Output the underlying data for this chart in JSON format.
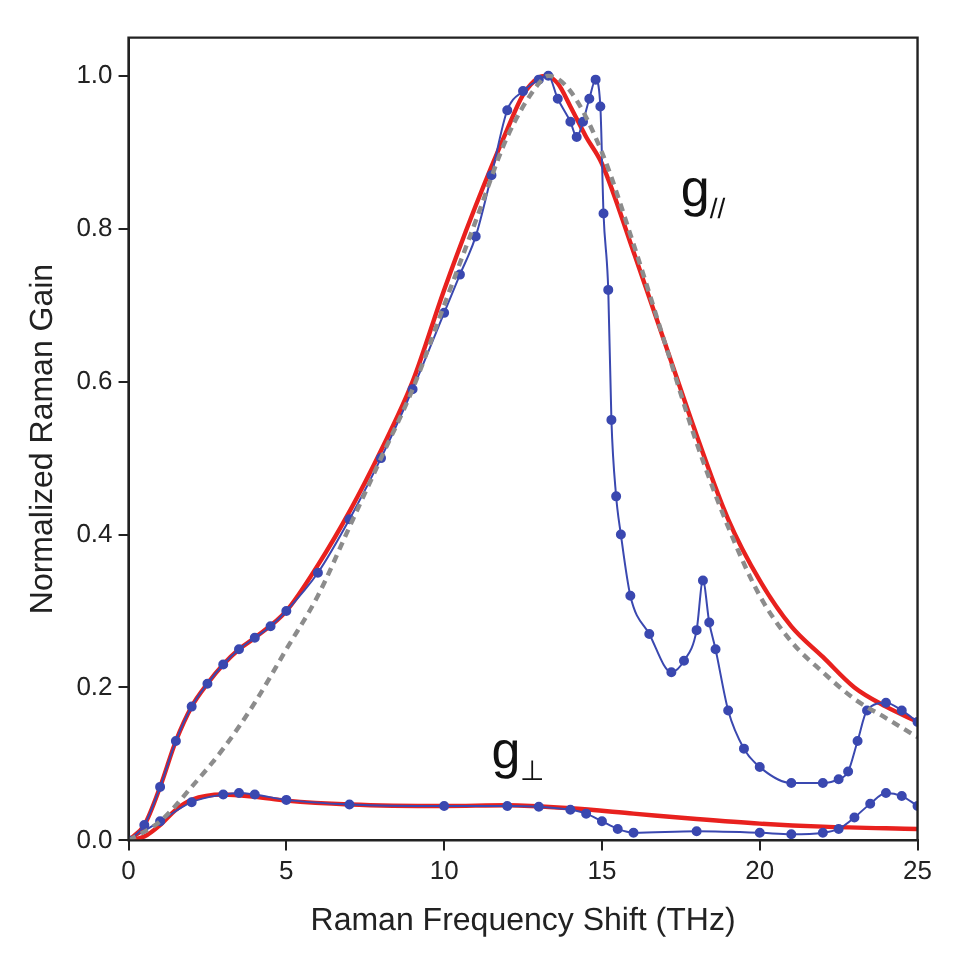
{
  "chart_data": {
    "type": "line",
    "xlabel": "Raman Frequency Shift (THz)",
    "ylabel": "Normalized Raman Gain",
    "xlim": [
      0,
      25
    ],
    "ylim": [
      0,
      1.05
    ],
    "xticks": [
      0,
      5,
      10,
      15,
      20,
      25
    ],
    "yticks": [
      {
        "value": 0,
        "label": "0.0"
      },
      0.2,
      0.4,
      0.6,
      0.8,
      {
        "value": 1,
        "label": "1.0"
      }
    ],
    "grid": false,
    "legend": false,
    "series": [
      {
        "color": "#8c8c8c",
        "line_style": "dashed",
        "marker": "none",
        "x": [
          0,
          1,
          2,
          3,
          4,
          5,
          6,
          7,
          8,
          9,
          10,
          11,
          12,
          13,
          13.3,
          14,
          15,
          16,
          17,
          18,
          19,
          20,
          21,
          22,
          23,
          24,
          25
        ],
        "values": [
          0,
          0.025,
          0.07,
          0.12,
          0.18,
          0.25,
          0.32,
          0.41,
          0.5,
          0.59,
          0.7,
          0.81,
          0.92,
          0.99,
          1.0,
          0.98,
          0.9,
          0.78,
          0.65,
          0.52,
          0.41,
          0.32,
          0.26,
          0.22,
          0.185,
          0.16,
          0.135
        ]
      },
      {
        "color": "#3a48b0",
        "marker": "circle",
        "x": [
          0,
          0.5,
          1,
          1.5,
          2,
          2.5,
          3,
          3.5,
          4,
          4.5,
          5,
          6,
          7,
          8,
          9,
          10,
          10.5,
          11,
          11.5,
          12,
          12.5,
          13,
          13.3,
          13.6,
          14,
          14.2,
          14.4,
          14.6,
          14.8,
          14.95,
          15.05,
          15.2,
          15.3,
          15.45,
          15.6,
          15.9,
          16.5,
          17.2,
          17.6,
          18,
          18.2,
          18.4,
          18.6,
          19,
          19.5,
          20,
          21,
          22,
          22.5,
          22.8,
          23.1,
          23.4,
          24,
          24.5,
          25
        ],
        "values": [
          0,
          0.02,
          0.07,
          0.13,
          0.175,
          0.205,
          0.23,
          0.25,
          0.265,
          0.28,
          0.3,
          0.35,
          0.42,
          0.5,
          0.59,
          0.69,
          0.74,
          0.79,
          0.87,
          0.955,
          0.98,
          0.995,
          1.0,
          0.97,
          0.94,
          0.92,
          0.94,
          0.97,
          0.995,
          0.96,
          0.82,
          0.72,
          0.55,
          0.45,
          0.4,
          0.32,
          0.27,
          0.22,
          0.235,
          0.275,
          0.34,
          0.285,
          0.25,
          0.17,
          0.12,
          0.096,
          0.075,
          0.075,
          0.08,
          0.09,
          0.13,
          0.17,
          0.18,
          0.17,
          0.155
        ]
      },
      {
        "color": "#e8211e",
        "marker": "none",
        "x": [
          0,
          0.5,
          1,
          1.5,
          2,
          2.5,
          3,
          3.5,
          4,
          5,
          6,
          7,
          8,
          9,
          10,
          11,
          12,
          12.5,
          13,
          13.2,
          13.6,
          14,
          14.5,
          15,
          16,
          17,
          18,
          19,
          20,
          21,
          22,
          23,
          24,
          25
        ],
        "values": [
          0,
          0.02,
          0.07,
          0.13,
          0.175,
          0.205,
          0.23,
          0.25,
          0.265,
          0.3,
          0.36,
          0.43,
          0.51,
          0.6,
          0.72,
          0.83,
          0.93,
          0.975,
          0.998,
          1.0,
          0.99,
          0.96,
          0.92,
          0.885,
          0.77,
          0.65,
          0.53,
          0.42,
          0.34,
          0.28,
          0.24,
          0.2,
          0.175,
          0.155
        ]
      },
      {
        "color": "#3a48b0",
        "marker": "circle",
        "x": [
          0,
          1,
          2,
          3,
          3.5,
          4,
          5,
          7,
          10,
          12,
          13,
          14,
          14.5,
          15,
          15.5,
          16,
          18,
          20,
          21,
          22,
          22.5,
          23,
          23.5,
          24,
          24.5,
          25
        ],
        "values": [
          0,
          0.025,
          0.05,
          0.06,
          0.062,
          0.06,
          0.053,
          0.047,
          0.045,
          0.045,
          0.044,
          0.04,
          0.035,
          0.025,
          0.015,
          0.01,
          0.012,
          0.01,
          0.008,
          0.01,
          0.015,
          0.03,
          0.048,
          0.062,
          0.058,
          0.045
        ]
      },
      {
        "color": "#e8211e",
        "marker": "none",
        "x": [
          0,
          0.5,
          1,
          1.5,
          2,
          3,
          4,
          5,
          7,
          10,
          12,
          14,
          16,
          18,
          20,
          22,
          25
        ],
        "values": [
          0,
          0.005,
          0.02,
          0.04,
          0.053,
          0.06,
          0.057,
          0.052,
          0.047,
          0.045,
          0.046,
          0.042,
          0.035,
          0.028,
          0.022,
          0.018,
          0.015
        ]
      }
    ],
    "annotations": [
      "g$_{//}$",
      "g$_{⊥}$"
    ]
  }
}
